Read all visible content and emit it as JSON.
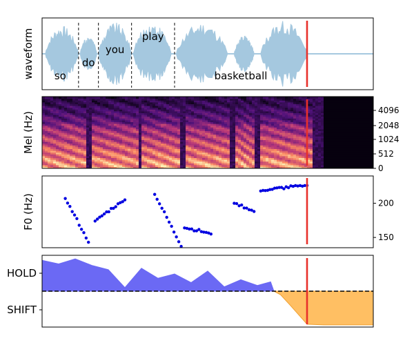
{
  "chart_data": {
    "type": "multi-panel",
    "playhead_time": 0.8,
    "colors": {
      "waveform": "#a5c8df",
      "word_boundary": "#333333",
      "playhead": "#e8302a",
      "f0_points": "#0000e0",
      "hold_fill": "#6b69f4",
      "shift_fill": "#ffbf63",
      "threshold": "#000000"
    },
    "panels": [
      {
        "name": "waveform",
        "ylabel": "waveform",
        "type": "line",
        "words": [
          {
            "text": "so",
            "start": 0.0,
            "end": 0.11
          },
          {
            "text": "do",
            "start": 0.11,
            "end": 0.17
          },
          {
            "text": "you",
            "start": 0.17,
            "end": 0.27
          },
          {
            "text": "play",
            "start": 0.27,
            "end": 0.4
          },
          {
            "text": "basketball",
            "start": 0.4,
            "end": 0.8
          }
        ],
        "boundaries": [
          0.11,
          0.17,
          0.27,
          0.4
        ],
        "segments": [
          {
            "start": 0.01,
            "end": 0.11,
            "peak": 0.85
          },
          {
            "start": 0.115,
            "end": 0.165,
            "peak": 0.55
          },
          {
            "start": 0.17,
            "end": 0.27,
            "peak": 0.95
          },
          {
            "start": 0.275,
            "end": 0.39,
            "peak": 0.95
          },
          {
            "start": 0.405,
            "end": 0.56,
            "peak": 0.95
          },
          {
            "start": 0.58,
            "end": 0.64,
            "peak": 0.55
          },
          {
            "start": 0.66,
            "end": 0.8,
            "peak": 1.0
          }
        ]
      },
      {
        "name": "mel",
        "ylabel": "Mel (Hz)",
        "type": "heatmap",
        "yticks": [
          "0",
          "512",
          "1024",
          "2048",
          "4096"
        ],
        "voiced_segments": [
          {
            "start": 0.0,
            "end": 0.13
          },
          {
            "start": 0.15,
            "end": 0.29
          },
          {
            "start": 0.3,
            "end": 0.42
          },
          {
            "start": 0.43,
            "end": 0.57
          },
          {
            "start": 0.58,
            "end": 0.64
          },
          {
            "start": 0.66,
            "end": 0.82
          }
        ]
      },
      {
        "name": "f0",
        "ylabel": "F0 (Hz)",
        "type": "scatter",
        "yticks": [
          150,
          200
        ],
        "ylim": [
          135,
          240
        ],
        "segments": [
          {
            "start": 0.07,
            "end": 0.14,
            "f_start": 207,
            "f_end": 143
          },
          {
            "start": 0.16,
            "end": 0.25,
            "f_start": 174,
            "f_end": 205
          },
          {
            "start": 0.34,
            "end": 0.42,
            "f_start": 213,
            "f_end": 137
          },
          {
            "start": 0.43,
            "end": 0.51,
            "f_start": 164,
            "f_end": 155
          },
          {
            "start": 0.58,
            "end": 0.64,
            "f_start": 200,
            "f_end": 188
          },
          {
            "start": 0.66,
            "end": 0.8,
            "f_start": 218,
            "f_end": 226
          }
        ]
      },
      {
        "name": "hold-shift",
        "type": "area",
        "yticks": [
          "HOLD",
          "SHIFT"
        ],
        "threshold": 0.5,
        "x": [
          0.0,
          0.05,
          0.1,
          0.15,
          0.2,
          0.25,
          0.3,
          0.35,
          0.4,
          0.45,
          0.5,
          0.55,
          0.6,
          0.65,
          0.69,
          0.7,
          0.72,
          0.75,
          0.8,
          0.85,
          0.9,
          0.95,
          1.0
        ],
        "y": [
          0.93,
          0.88,
          0.95,
          0.86,
          0.8,
          0.55,
          0.82,
          0.68,
          0.74,
          0.62,
          0.78,
          0.56,
          0.66,
          0.58,
          0.63,
          0.5,
          0.45,
          0.3,
          0.04,
          0.03,
          0.03,
          0.03,
          0.03
        ]
      }
    ]
  }
}
